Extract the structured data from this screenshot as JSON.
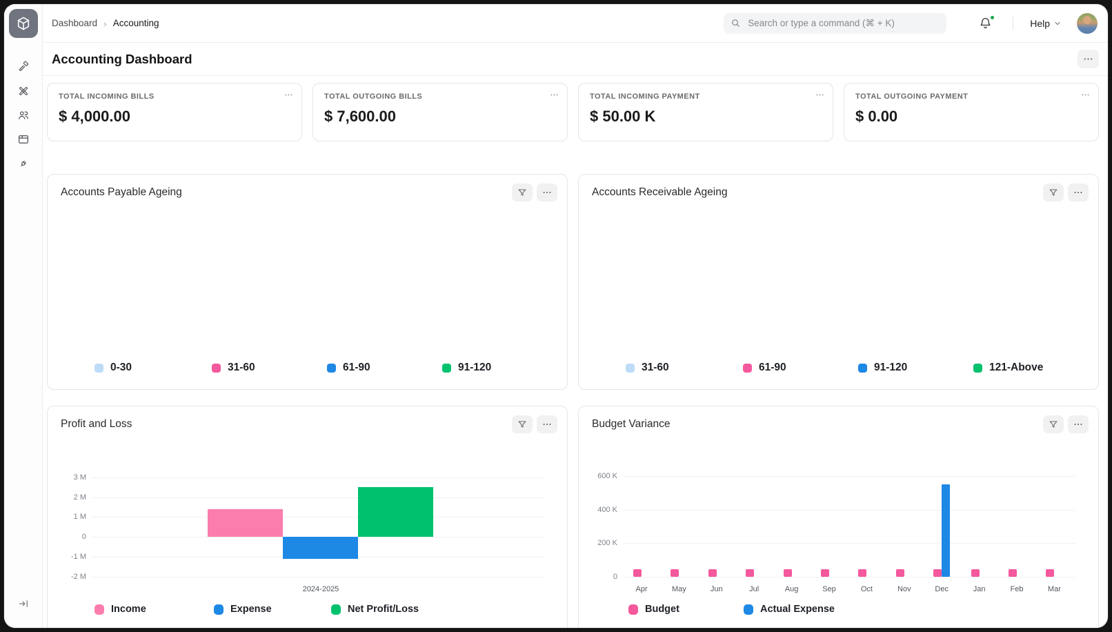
{
  "colors": {
    "light_blue": "#BEDCF8",
    "pink": "#F4589D",
    "pink_light": "#FB7DAD",
    "blue": "#1E88E5",
    "green": "#00C16E",
    "notification_dot": "#18A34B",
    "grid": "#F1F1F1",
    "logo_bg": "#6F747E"
  },
  "topbar": {
    "breadcrumb": {
      "items": [
        "Dashboard",
        "Accounting"
      ],
      "separator": "›"
    },
    "search_placeholder": "Search or type a command (⌘ + K)",
    "help_label": "Help",
    "notifications": {
      "has_unread": true
    },
    "icons": [
      "search-icon",
      "bell-icon",
      "chevron-down-icon",
      "avatar"
    ]
  },
  "sidebar": {
    "logo_icon": "cube-icon",
    "nav_icons": [
      "hammer-icon",
      "tools-icon",
      "users-icon",
      "browser-window-icon",
      "plug-icon"
    ],
    "collapse_icon": "expand-sidebar-icon"
  },
  "page": {
    "title": "Accounting Dashboard"
  },
  "number_cards": [
    {
      "label": "TOTAL INCOMING BILLS",
      "value": "$ 4,000.00"
    },
    {
      "label": "TOTAL OUTGOING BILLS",
      "value": "$ 7,600.00"
    },
    {
      "label": "TOTAL INCOMING PAYMENT",
      "value": "$ 50.00 K"
    },
    {
      "label": "TOTAL OUTGOING PAYMENT",
      "value": "$ 0.00"
    }
  ],
  "panels": {
    "payable": {
      "title": "Accounts Payable Ageing",
      "legend": [
        {
          "label": "0-30",
          "color_key": "light_blue"
        },
        {
          "label": "31-60",
          "color_key": "pink"
        },
        {
          "label": "61-90",
          "color_key": "blue"
        },
        {
          "label": "91-120",
          "color_key": "green"
        }
      ]
    },
    "receivable": {
      "title": "Accounts Receivable Ageing",
      "legend": [
        {
          "label": "31-60",
          "color_key": "light_blue"
        },
        {
          "label": "61-90",
          "color_key": "pink"
        },
        {
          "label": "91-120",
          "color_key": "blue"
        },
        {
          "label": "121-Above",
          "color_key": "green"
        }
      ]
    },
    "profit_loss": {
      "title": "Profit and Loss"
    },
    "budget_variance": {
      "title": "Budget Variance"
    }
  },
  "chart_data": [
    {
      "id": "profit_loss",
      "type": "bar",
      "title": "Profit and Loss",
      "categories": [
        "2024-2025"
      ],
      "xlabel": "2024-2025",
      "series": [
        {
          "name": "Income",
          "color_key": "pink_light",
          "values": [
            1400000
          ]
        },
        {
          "name": "Expense",
          "color_key": "blue",
          "values": [
            -1100000
          ]
        },
        {
          "name": "Net Profit/Loss",
          "color_key": "green",
          "values": [
            2500000
          ]
        }
      ],
      "y_ticks": [
        {
          "label": "3 M",
          "value": 3000000
        },
        {
          "label": "2 M",
          "value": 2000000
        },
        {
          "label": "1 M",
          "value": 1000000
        },
        {
          "label": "0",
          "value": 0
        },
        {
          "label": "-1 M",
          "value": -1000000
        },
        {
          "label": "-2 M",
          "value": -2000000
        }
      ],
      "ylim": [
        -2000000,
        3000000
      ],
      "grid": true,
      "legend_position": "bottom"
    },
    {
      "id": "budget_variance",
      "type": "bar",
      "title": "Budget Variance",
      "categories": [
        "Apr",
        "May",
        "Jun",
        "Jul",
        "Aug",
        "Sep",
        "Oct",
        "Nov",
        "Dec",
        "Jan",
        "Feb",
        "Mar"
      ],
      "series": [
        {
          "name": "Budget",
          "color_key": "pink",
          "values": [
            45000,
            45000,
            45000,
            45000,
            45000,
            45000,
            45000,
            45000,
            45000,
            45000,
            45000,
            45000
          ]
        },
        {
          "name": "Actual Expense",
          "color_key": "blue",
          "values": [
            0,
            0,
            0,
            0,
            0,
            0,
            0,
            0,
            550000,
            0,
            0,
            0
          ]
        }
      ],
      "y_ticks": [
        {
          "label": "600 K",
          "value": 600000
        },
        {
          "label": "400 K",
          "value": 400000
        },
        {
          "label": "200 K",
          "value": 200000
        },
        {
          "label": "0",
          "value": 0
        }
      ],
      "ylim": [
        0,
        600000
      ],
      "grid": true,
      "legend_position": "bottom"
    }
  ]
}
